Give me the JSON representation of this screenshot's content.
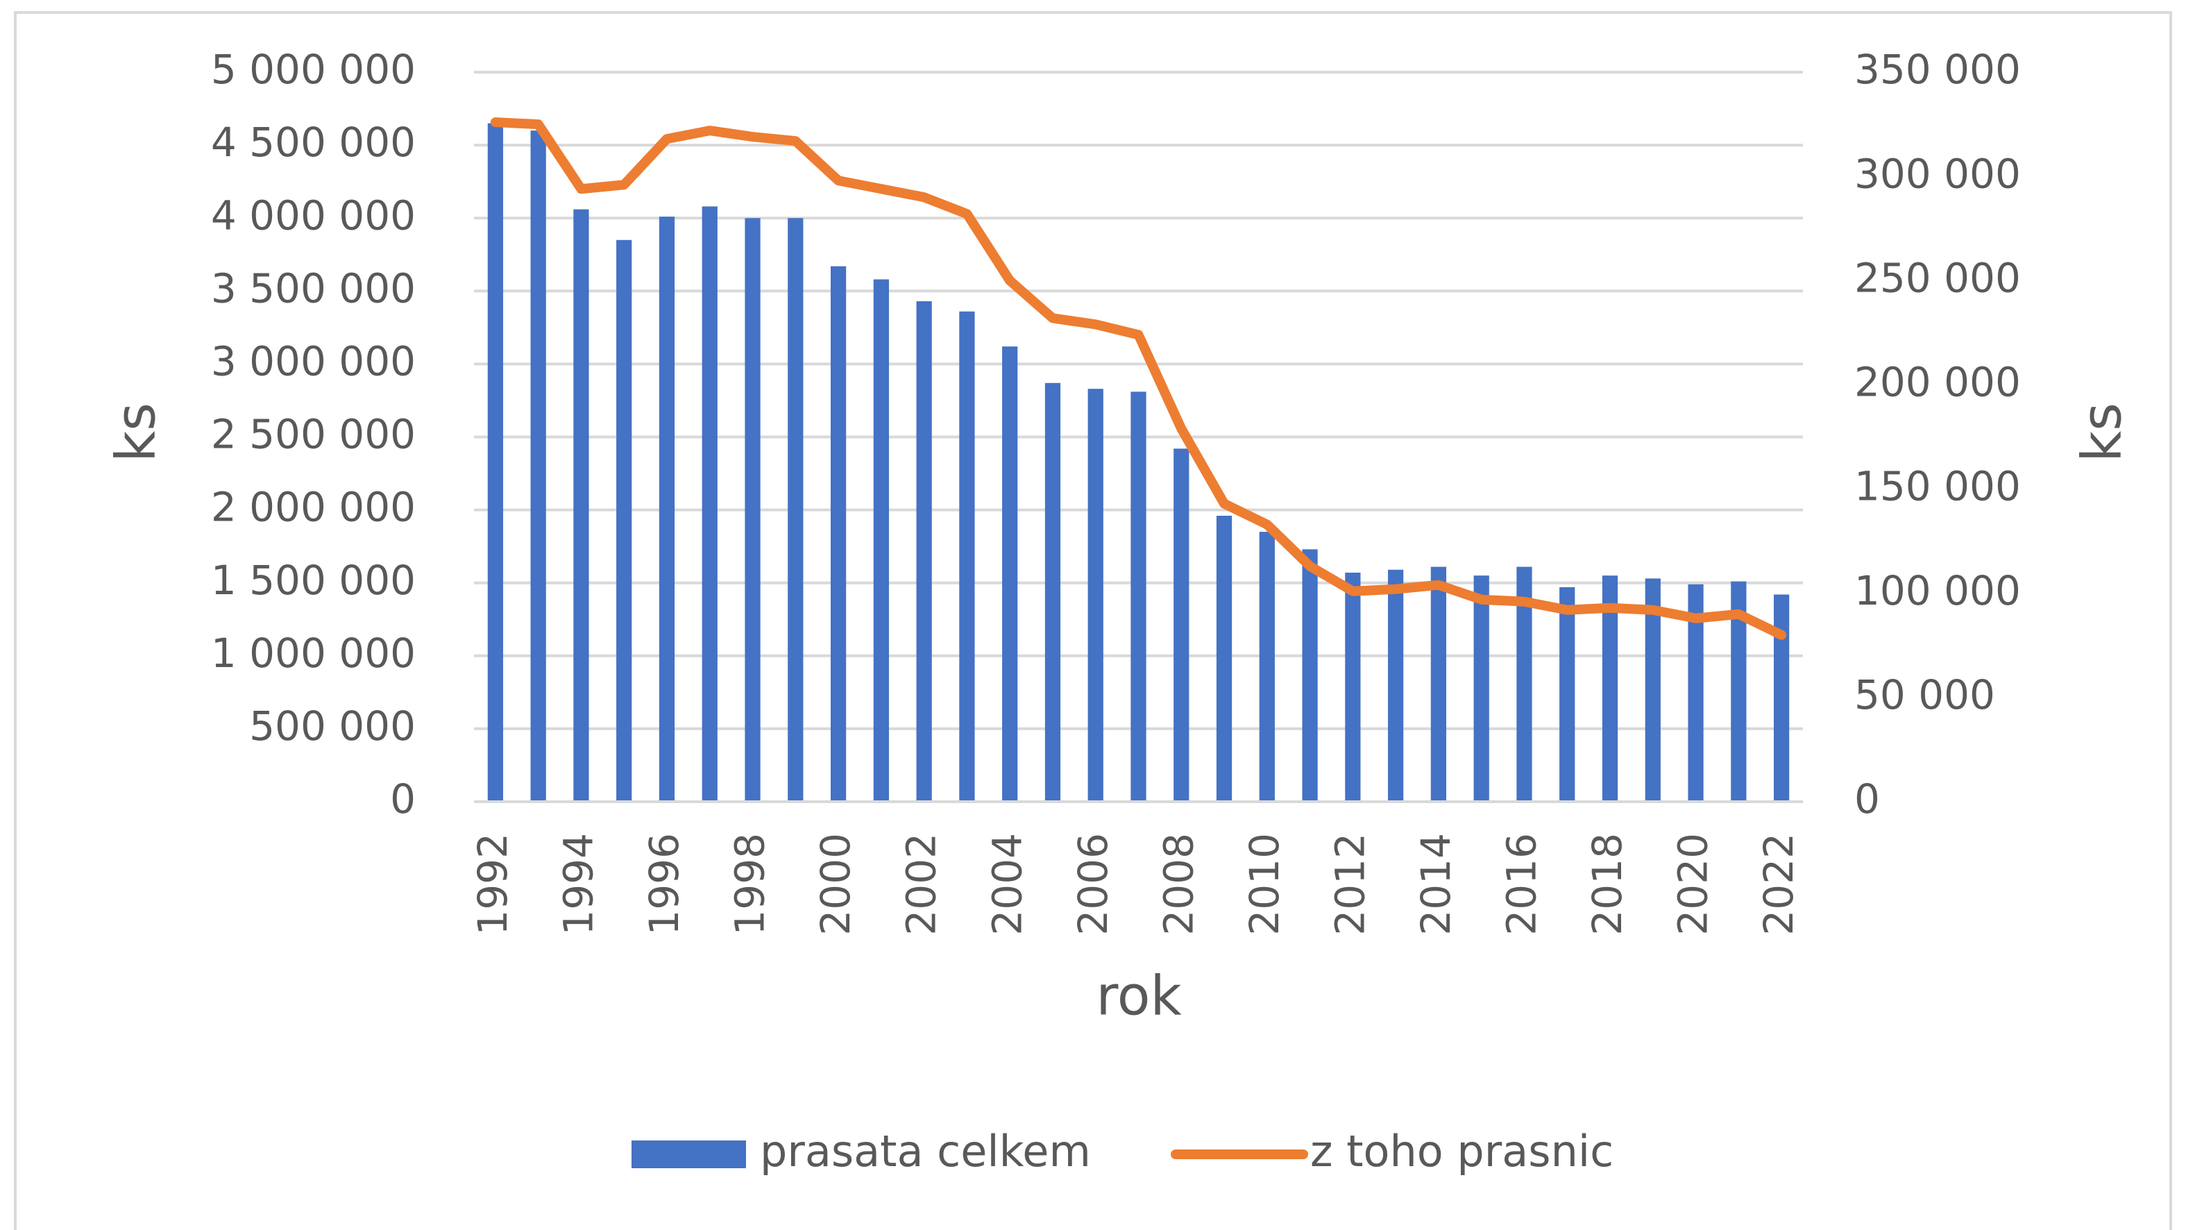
{
  "chart_data": {
    "type": "combo",
    "categories": [
      1992,
      null,
      1994,
      null,
      1996,
      null,
      1998,
      null,
      2000,
      null,
      2002,
      null,
      2004,
      null,
      2006,
      null,
      2008,
      null,
      2010,
      null,
      2012,
      null,
      2014,
      null,
      2016,
      null,
      2018,
      null,
      2020,
      null,
      2022
    ],
    "series": [
      {
        "name": "prasata celkem",
        "type": "bar",
        "color": "#4472c4",
        "values": [
          4650000,
          4600000,
          4060000,
          3850000,
          4010000,
          4080000,
          4000000,
          4000000,
          3670000,
          3580000,
          3430000,
          3360000,
          3120000,
          2870000,
          2830000,
          2810000,
          2420000,
          1960000,
          1850000,
          1730000,
          1570000,
          1590000,
          1610000,
          1550000,
          1610000,
          1470000,
          1550000,
          1530000,
          1490000,
          1510000,
          1420000
        ]
      },
      {
        "name": "z toho prasnic",
        "type": "line",
        "axis": "y2",
        "color": "#ed7d31",
        "values": [
          326000,
          325000,
          294000,
          296000,
          318000,
          322000,
          319000,
          317000,
          298000,
          294000,
          290000,
          282000,
          250000,
          232000,
          229000,
          224000,
          179000,
          143000,
          133000,
          113000,
          101000,
          102000,
          104000,
          97000,
          96000,
          92000,
          93000,
          92000,
          88000,
          90000,
          80000
        ]
      }
    ],
    "ylabel": "ks",
    "y2label": "ks",
    "xlabel": "rok",
    "ylim": [
      0,
      5000000
    ],
    "yticks": [
      0,
      {
        "value": 500000,
        "label": "500 000"
      },
      {
        "value": 1000000,
        "label": "1 000 000"
      },
      {
        "value": 1500000,
        "label": "1 500 000"
      },
      {
        "value": 2000000,
        "label": "2 000 000"
      },
      {
        "value": 2500000,
        "label": "2 500 000"
      },
      {
        "value": 3000000,
        "label": "3 000 000"
      },
      {
        "value": 3500000,
        "label": "3 500 000"
      },
      {
        "value": 4000000,
        "label": "4 000 000"
      },
      {
        "value": 4500000,
        "label": "4 500 000"
      },
      {
        "value": 5000000,
        "label": "5 000 000"
      }
    ],
    "y2lim": [
      0,
      350000
    ],
    "y2ticks": [
      0,
      {
        "value": 50000,
        "label": "50 000"
      },
      {
        "value": 100000,
        "label": "100 000"
      },
      {
        "value": 150000,
        "label": "150 000"
      },
      {
        "value": 200000,
        "label": "200 000"
      },
      {
        "value": 250000,
        "label": "250 000"
      },
      {
        "value": 300000,
        "label": "300 000"
      },
      {
        "value": 350000,
        "label": "350 000"
      }
    ],
    "grid": true,
    "legend": "bottom"
  }
}
